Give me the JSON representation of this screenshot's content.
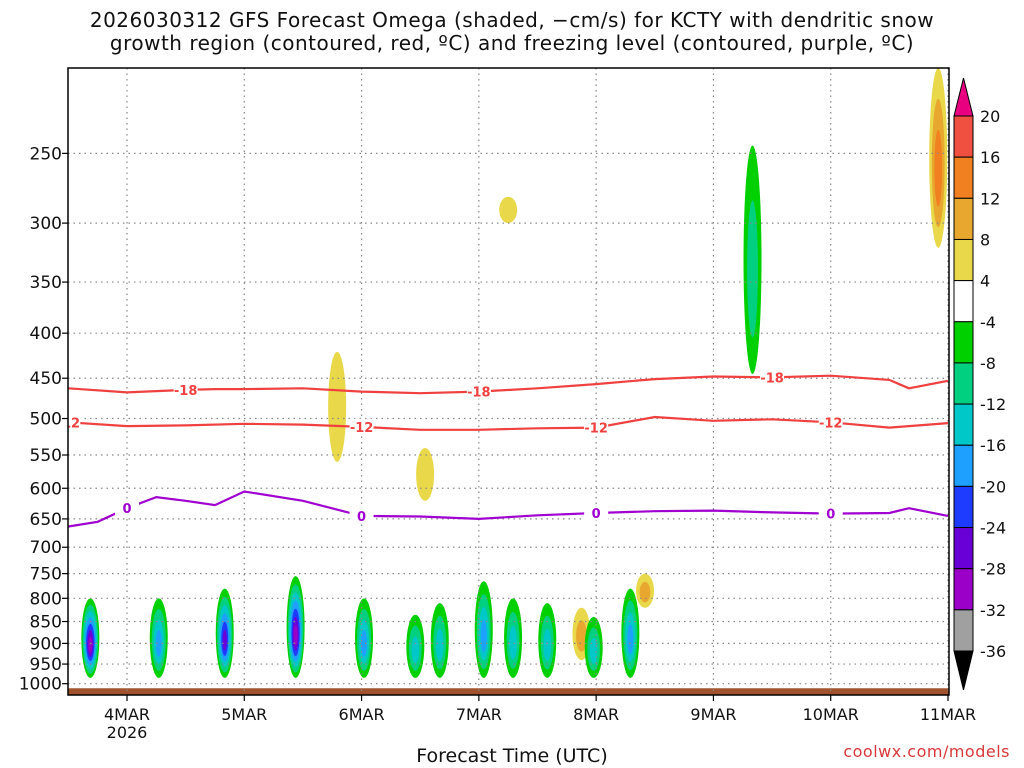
{
  "title_line1": "2026030312 GFS Forecast Omega (shaded, −cm/s) for KCTY with dendritic snow",
  "title_line2": "growth region (contoured, red, ºC) and freezing level (contoured, purple, ºC)",
  "credit": "coolwx.com/models",
  "chart_data": {
    "type": "heatmap",
    "title": "2026030312 GFS Forecast Omega (shaded, −cm/s) for KCTY with dendritic snow growth region (contoured, red, ºC) and freezing level (contoured, purple, ºC)",
    "xlabel": "Forecast Time (UTC)",
    "ylabel": "",
    "x_ticks": [
      "4MAR",
      "5MAR",
      "6MAR",
      "7MAR",
      "8MAR",
      "9MAR",
      "10MAR",
      "11MAR"
    ],
    "x_tick_sublabel": "2026",
    "xlim_hours": [
      0,
      180
    ],
    "y_ticks": [
      250,
      300,
      350,
      400,
      450,
      500,
      550,
      600,
      650,
      700,
      750,
      800,
      850,
      900,
      950,
      1000
    ],
    "ylim": [
      1030,
      200
    ],
    "y_scale": "log",
    "grid": true,
    "colorbar": {
      "levels": [
        -36,
        -32,
        -28,
        -24,
        -20,
        -16,
        -12,
        -8,
        -4,
        4,
        8,
        12,
        16,
        20
      ],
      "colors": [
        "#000000",
        "#a0a0a0",
        "#9a00c8",
        "#6a00d8",
        "#1e3cff",
        "#1ea0ff",
        "#00c8c8",
        "#00d080",
        "#00d000",
        "#ffffff",
        "#e8d84a",
        "#e8a830",
        "#f08020",
        "#f05040",
        "#e80080"
      ]
    },
    "contours": [
      {
        "label": "-18",
        "color": "#f04040",
        "x": [
          0,
          12,
          24,
          30,
          36,
          48,
          60,
          72,
          84,
          96,
          108,
          120,
          132,
          144,
          156,
          168,
          172,
          180
        ],
        "y": [
          462,
          467,
          464,
          463,
          463,
          462,
          466,
          468,
          466,
          462,
          457,
          451,
          448,
          449,
          447,
          452,
          462,
          453
        ]
      },
      {
        "label": "-12",
        "color": "#f04040",
        "x": [
          0,
          12,
          24,
          36,
          48,
          60,
          72,
          84,
          96,
          108,
          120,
          132,
          144,
          156,
          168,
          180
        ],
        "y": [
          505,
          510,
          509,
          507,
          508,
          511,
          515,
          515,
          513,
          512,
          498,
          503,
          501,
          505,
          512,
          506
        ]
      },
      {
        "label": "0",
        "color": "#a000d0",
        "x": [
          0,
          6,
          12,
          18,
          24,
          30,
          36,
          48,
          60,
          72,
          84,
          96,
          108,
          120,
          132,
          144,
          156,
          168,
          172,
          180
        ],
        "y": [
          663,
          655,
          632,
          614,
          620,
          627,
          605,
          620,
          645,
          646,
          650,
          644,
          640,
          637,
          636,
          639,
          641,
          640,
          632,
          645
        ]
      }
    ],
    "omega_cells": [
      {
        "x": 4.5,
        "p1": 800,
        "p2": 985,
        "v": -30
      },
      {
        "x": 18.5,
        "p1": 800,
        "p2": 985,
        "v": -18
      },
      {
        "x": 32,
        "p1": 780,
        "p2": 985,
        "v": -24
      },
      {
        "x": 46.5,
        "p1": 755,
        "p2": 985,
        "v": -30
      },
      {
        "x": 60.5,
        "p1": 800,
        "p2": 985,
        "v": -18
      },
      {
        "x": 71,
        "p1": 835,
        "p2": 985,
        "v": -14
      },
      {
        "x": 76,
        "p1": 810,
        "p2": 985,
        "v": -14
      },
      {
        "x": 85,
        "p1": 765,
        "p2": 985,
        "v": -16
      },
      {
        "x": 91,
        "p1": 800,
        "p2": 985,
        "v": -14
      },
      {
        "x": 98,
        "p1": 810,
        "p2": 985,
        "v": -14
      },
      {
        "x": 107.5,
        "p1": 840,
        "p2": 985,
        "v": -12
      },
      {
        "x": 115,
        "p1": 780,
        "p2": 985,
        "v": -16
      },
      {
        "x": 140,
        "p1": 245,
        "p2": 445,
        "v": -10
      }
    ],
    "omega_positive": [
      {
        "x": 55,
        "p1": 420,
        "p2": 560,
        "v": 6
      },
      {
        "x": 73,
        "p1": 540,
        "p2": 620,
        "v": 6
      },
      {
        "x": 90,
        "p1": 280,
        "p2": 300,
        "v": 6
      },
      {
        "x": 105,
        "p1": 820,
        "p2": 940,
        "v": 10
      },
      {
        "x": 118,
        "p1": 750,
        "p2": 820,
        "v": 10
      },
      {
        "x": 178,
        "p1": 200,
        "p2": 320,
        "v": 14
      }
    ],
    "surface_fill": {
      "p": [
        1012,
        1030
      ],
      "color": "#a0522d"
    }
  }
}
